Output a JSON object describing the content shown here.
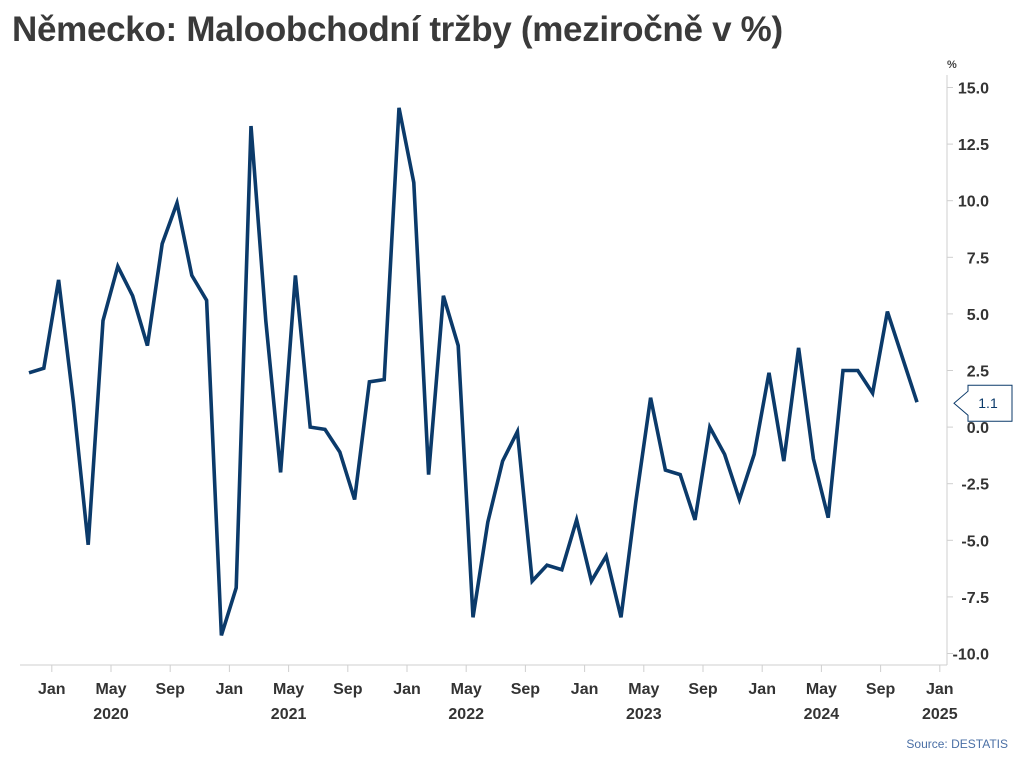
{
  "chart_data": {
    "type": "line",
    "title": "Německo: Maloobchodní tržby (meziročně v %)",
    "unit_label": "%",
    "source": "Source: DESTATIS",
    "line_color": "#0b3a6a",
    "ylim": [
      -10.5,
      15.5
    ],
    "yticks": [
      {
        "value": 15,
        "label": "15.0"
      },
      {
        "value": 12.5,
        "label": "12.5"
      },
      {
        "value": 10,
        "label": "10.0"
      },
      {
        "value": 7.5,
        "label": "7.5"
      },
      {
        "value": 5,
        "label": "5.0"
      },
      {
        "value": 2.5,
        "label": "2.5"
      },
      {
        "value": 0,
        "label": "0.0"
      },
      {
        "value": -2.5,
        "label": "-2.5"
      },
      {
        "value": -5,
        "label": "-5.0"
      },
      {
        "value": -7.5,
        "label": "-7.5"
      },
      {
        "value": -10,
        "label": "-10.0"
      }
    ],
    "xticks": [
      {
        "month": "2020-01",
        "label": "Jan"
      },
      {
        "month": "2020-05",
        "label": "May"
      },
      {
        "month": "2020-09",
        "label": "Sep"
      },
      {
        "month": "2021-01",
        "label": "Jan"
      },
      {
        "month": "2021-05",
        "label": "May"
      },
      {
        "month": "2021-09",
        "label": "Sep"
      },
      {
        "month": "2022-01",
        "label": "Jan"
      },
      {
        "month": "2022-05",
        "label": "May"
      },
      {
        "month": "2022-09",
        "label": "Sep"
      },
      {
        "month": "2023-01",
        "label": "Jan"
      },
      {
        "month": "2023-05",
        "label": "May"
      },
      {
        "month": "2023-09",
        "label": "Sep"
      },
      {
        "month": "2024-01",
        "label": "Jan"
      },
      {
        "month": "2024-05",
        "label": "May"
      },
      {
        "month": "2024-09",
        "label": "Sep"
      },
      {
        "month": "2025-01",
        "label": "Jan"
      }
    ],
    "year_labels": [
      {
        "month": "2020-05",
        "label": "2020"
      },
      {
        "month": "2021-05",
        "label": "2021"
      },
      {
        "month": "2022-05",
        "label": "2022"
      },
      {
        "month": "2023-05",
        "label": "2023"
      },
      {
        "month": "2024-05",
        "label": "2024"
      },
      {
        "month": "2025-01",
        "label": "2025"
      }
    ],
    "last_value_label": "1.1",
    "series": [
      {
        "x": [
          "2019-12",
          "2020-01",
          "2020-02",
          "2020-03",
          "2020-04",
          "2020-05",
          "2020-06",
          "2020-07",
          "2020-08",
          "2020-09",
          "2020-10",
          "2020-11",
          "2020-12",
          "2021-01",
          "2021-02",
          "2021-03",
          "2021-04",
          "2021-05",
          "2021-06",
          "2021-07",
          "2021-08",
          "2021-09",
          "2021-10",
          "2021-11",
          "2021-12",
          "2022-01",
          "2022-02",
          "2022-03",
          "2022-04",
          "2022-05",
          "2022-06",
          "2022-07",
          "2022-08",
          "2022-09",
          "2022-10",
          "2022-11",
          "2022-12",
          "2023-01",
          "2023-02",
          "2023-03",
          "2023-04",
          "2023-05",
          "2023-06",
          "2023-07",
          "2023-08",
          "2023-09",
          "2023-10",
          "2023-11",
          "2023-12",
          "2024-01",
          "2024-02",
          "2024-03",
          "2024-04",
          "2024-05",
          "2024-06",
          "2024-07",
          "2024-08",
          "2024-09",
          "2024-10",
          "2024-11",
          "2024-12"
        ],
        "values": [
          2.4,
          2.6,
          6.5,
          1.1,
          -5.2,
          4.7,
          7.1,
          5.8,
          3.6,
          8.1,
          9.9,
          6.7,
          5.6,
          -9.2,
          -7.1,
          13.3,
          4.7,
          -2.0,
          6.7,
          0.0,
          -0.1,
          -1.1,
          -3.2,
          2.0,
          2.1,
          14.1,
          10.8,
          -2.1,
          5.8,
          3.6,
          -8.4,
          -4.2,
          -1.5,
          -0.2,
          -6.8,
          -6.1,
          -6.3,
          -4.1,
          -6.8,
          -5.7,
          -8.4,
          -3.3,
          1.3,
          -1.9,
          -2.1,
          -4.1,
          0.0,
          -1.2,
          -3.2,
          -1.2,
          2.4,
          -1.5,
          3.5,
          -1.4,
          -4.0,
          2.5,
          2.5,
          1.5,
          5.1,
          3.1,
          1.1
        ]
      }
    ]
  }
}
